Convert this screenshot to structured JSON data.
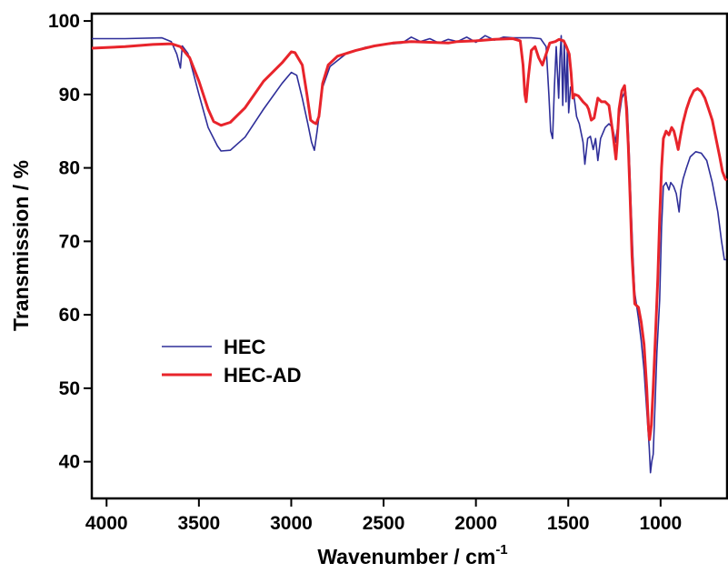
{
  "chart_data": {
    "type": "line",
    "xlabel": "Wavenumber / cm",
    "xlabel_superscript": "-1",
    "ylabel": "Transmission / %",
    "xlim": [
      4080,
      640
    ],
    "x_reversed": true,
    "ylim": [
      35,
      101
    ],
    "xticks": [
      4000,
      3500,
      3000,
      2500,
      2000,
      1500,
      1000
    ],
    "yticks": [
      40,
      50,
      60,
      70,
      80,
      90,
      100
    ],
    "legend_position": "center-left",
    "series": [
      {
        "name": "HEC",
        "color": "#2e2e99",
        "points": [
          [
            4080,
            97.6
          ],
          [
            3900,
            97.6
          ],
          [
            3700,
            97.7
          ],
          [
            3650,
            97.2
          ],
          [
            3620,
            95.5
          ],
          [
            3600,
            93.6
          ],
          [
            3590,
            96.6
          ],
          [
            3560,
            95.6
          ],
          [
            3550,
            94.8
          ],
          [
            3500,
            90.0
          ],
          [
            3450,
            85.5
          ],
          [
            3400,
            83.0
          ],
          [
            3380,
            82.3
          ],
          [
            3330,
            82.4
          ],
          [
            3250,
            84.2
          ],
          [
            3150,
            88.0
          ],
          [
            3050,
            91.5
          ],
          [
            3000,
            93.0
          ],
          [
            2970,
            92.6
          ],
          [
            2940,
            89.5
          ],
          [
            2910,
            86.0
          ],
          [
            2890,
            83.5
          ],
          [
            2875,
            82.4
          ],
          [
            2860,
            85.0
          ],
          [
            2830,
            91.0
          ],
          [
            2790,
            93.8
          ],
          [
            2700,
            95.6
          ],
          [
            2600,
            96.4
          ],
          [
            2500,
            96.8
          ],
          [
            2400,
            97.0
          ],
          [
            2350,
            97.8
          ],
          [
            2300,
            97.2
          ],
          [
            2250,
            97.6
          ],
          [
            2200,
            97.0
          ],
          [
            2150,
            97.5
          ],
          [
            2100,
            97.2
          ],
          [
            2050,
            97.8
          ],
          [
            2000,
            97.1
          ],
          [
            1950,
            98.0
          ],
          [
            1900,
            97.4
          ],
          [
            1850,
            97.8
          ],
          [
            1800,
            97.7
          ],
          [
            1700,
            97.7
          ],
          [
            1650,
            97.6
          ],
          [
            1620,
            96.5
          ],
          [
            1605,
            90.0
          ],
          [
            1595,
            85.0
          ],
          [
            1585,
            84.0
          ],
          [
            1575,
            91.0
          ],
          [
            1565,
            96.5
          ],
          [
            1552,
            89.5
          ],
          [
            1545,
            95.0
          ],
          [
            1538,
            98.0
          ],
          [
            1530,
            88.5
          ],
          [
            1522,
            97.0
          ],
          [
            1512,
            89.0
          ],
          [
            1505,
            96.0
          ],
          [
            1498,
            87.5
          ],
          [
            1488,
            91.0
          ],
          [
            1470,
            90.0
          ],
          [
            1455,
            87.0
          ],
          [
            1440,
            86.0
          ],
          [
            1420,
            83.5
          ],
          [
            1410,
            80.5
          ],
          [
            1395,
            84.0
          ],
          [
            1380,
            84.3
          ],
          [
            1365,
            82.5
          ],
          [
            1352,
            84.0
          ],
          [
            1340,
            81.0
          ],
          [
            1325,
            84.0
          ],
          [
            1300,
            85.5
          ],
          [
            1280,
            86.0
          ],
          [
            1260,
            85.5
          ],
          [
            1245,
            83.5
          ],
          [
            1230,
            86.0
          ],
          [
            1210,
            89.5
          ],
          [
            1190,
            90.5
          ],
          [
            1180,
            88.0
          ],
          [
            1170,
            82.0
          ],
          [
            1160,
            75.0
          ],
          [
            1150,
            68.0
          ],
          [
            1140,
            63.0
          ],
          [
            1120,
            59.5
          ],
          [
            1105,
            56.5
          ],
          [
            1090,
            52.5
          ],
          [
            1075,
            47.0
          ],
          [
            1062,
            42.0
          ],
          [
            1055,
            38.5
          ],
          [
            1048,
            40.0
          ],
          [
            1040,
            41.0
          ],
          [
            1030,
            48.0
          ],
          [
            1020,
            55.0
          ],
          [
            1005,
            62.0
          ],
          [
            995,
            72.0
          ],
          [
            985,
            77.5
          ],
          [
            970,
            78.0
          ],
          [
            955,
            77.0
          ],
          [
            945,
            78.0
          ],
          [
            930,
            77.5
          ],
          [
            915,
            76.5
          ],
          [
            900,
            74.0
          ],
          [
            890,
            77.0
          ],
          [
            878,
            78.5
          ],
          [
            860,
            80.0
          ],
          [
            840,
            81.5
          ],
          [
            810,
            82.2
          ],
          [
            780,
            82.0
          ],
          [
            750,
            81.0
          ],
          [
            720,
            78.0
          ],
          [
            690,
            74.0
          ],
          [
            670,
            70.0
          ],
          [
            655,
            67.5
          ],
          [
            645,
            67.5
          ]
        ]
      },
      {
        "name": "HEC-AD",
        "color": "#e8242b",
        "points": [
          [
            4080,
            96.3
          ],
          [
            3900,
            96.5
          ],
          [
            3750,
            96.8
          ],
          [
            3650,
            96.9
          ],
          [
            3600,
            96.5
          ],
          [
            3550,
            95.0
          ],
          [
            3500,
            91.8
          ],
          [
            3450,
            88.0
          ],
          [
            3420,
            86.3
          ],
          [
            3380,
            85.8
          ],
          [
            3330,
            86.2
          ],
          [
            3250,
            88.2
          ],
          [
            3150,
            91.8
          ],
          [
            3050,
            94.3
          ],
          [
            3000,
            95.8
          ],
          [
            2980,
            95.7
          ],
          [
            2940,
            94.0
          ],
          [
            2915,
            90.0
          ],
          [
            2895,
            86.5
          ],
          [
            2880,
            86.2
          ],
          [
            2865,
            86.0
          ],
          [
            2850,
            87.0
          ],
          [
            2830,
            91.5
          ],
          [
            2800,
            94.0
          ],
          [
            2750,
            95.2
          ],
          [
            2650,
            96.0
          ],
          [
            2550,
            96.6
          ],
          [
            2450,
            97.0
          ],
          [
            2350,
            97.2
          ],
          [
            2250,
            97.1
          ],
          [
            2150,
            97.0
          ],
          [
            2100,
            97.2
          ],
          [
            2000,
            97.3
          ],
          [
            1900,
            97.5
          ],
          [
            1800,
            97.6
          ],
          [
            1760,
            97.3
          ],
          [
            1745,
            94.0
          ],
          [
            1735,
            90.0
          ],
          [
            1728,
            89.0
          ],
          [
            1718,
            92.0
          ],
          [
            1700,
            96.0
          ],
          [
            1680,
            96.5
          ],
          [
            1660,
            95.0
          ],
          [
            1640,
            94.0
          ],
          [
            1620,
            95.5
          ],
          [
            1600,
            97.0
          ],
          [
            1570,
            97.2
          ],
          [
            1550,
            97.5
          ],
          [
            1525,
            97.3
          ],
          [
            1510,
            96.5
          ],
          [
            1495,
            95.5
          ],
          [
            1485,
            93.0
          ],
          [
            1475,
            89.5
          ],
          [
            1465,
            90.0
          ],
          [
            1445,
            89.8
          ],
          [
            1420,
            89.0
          ],
          [
            1400,
            88.5
          ],
          [
            1390,
            88.0
          ],
          [
            1375,
            86.5
          ],
          [
            1360,
            86.8
          ],
          [
            1340,
            89.5
          ],
          [
            1320,
            89.0
          ],
          [
            1300,
            89.0
          ],
          [
            1280,
            88.5
          ],
          [
            1260,
            85.0
          ],
          [
            1250,
            83.0
          ],
          [
            1242,
            81.2
          ],
          [
            1235,
            83.5
          ],
          [
            1225,
            88.0
          ],
          [
            1210,
            90.5
          ],
          [
            1195,
            91.2
          ],
          [
            1185,
            88.0
          ],
          [
            1175,
            83.0
          ],
          [
            1165,
            76.0
          ],
          [
            1155,
            68.0
          ],
          [
            1140,
            61.5
          ],
          [
            1120,
            61.0
          ],
          [
            1105,
            59.0
          ],
          [
            1090,
            56.0
          ],
          [
            1075,
            50.0
          ],
          [
            1065,
            44.5
          ],
          [
            1060,
            43.0
          ],
          [
            1050,
            45.0
          ],
          [
            1040,
            50.0
          ],
          [
            1030,
            56.0
          ],
          [
            1015,
            65.0
          ],
          [
            1005,
            73.0
          ],
          [
            995,
            80.0
          ],
          [
            985,
            84.0
          ],
          [
            970,
            85.0
          ],
          [
            955,
            84.5
          ],
          [
            940,
            85.5
          ],
          [
            928,
            85.0
          ],
          [
            918,
            84.0
          ],
          [
            905,
            82.5
          ],
          [
            895,
            84.0
          ],
          [
            880,
            86.0
          ],
          [
            860,
            88.0
          ],
          [
            840,
            89.5
          ],
          [
            820,
            90.5
          ],
          [
            800,
            90.8
          ],
          [
            780,
            90.4
          ],
          [
            760,
            89.5
          ],
          [
            740,
            88.0
          ],
          [
            720,
            86.5
          ],
          [
            700,
            84.0
          ],
          [
            680,
            81.5
          ],
          [
            665,
            79.5
          ],
          [
            650,
            78.5
          ],
          [
            642,
            78.3
          ]
        ]
      }
    ]
  }
}
